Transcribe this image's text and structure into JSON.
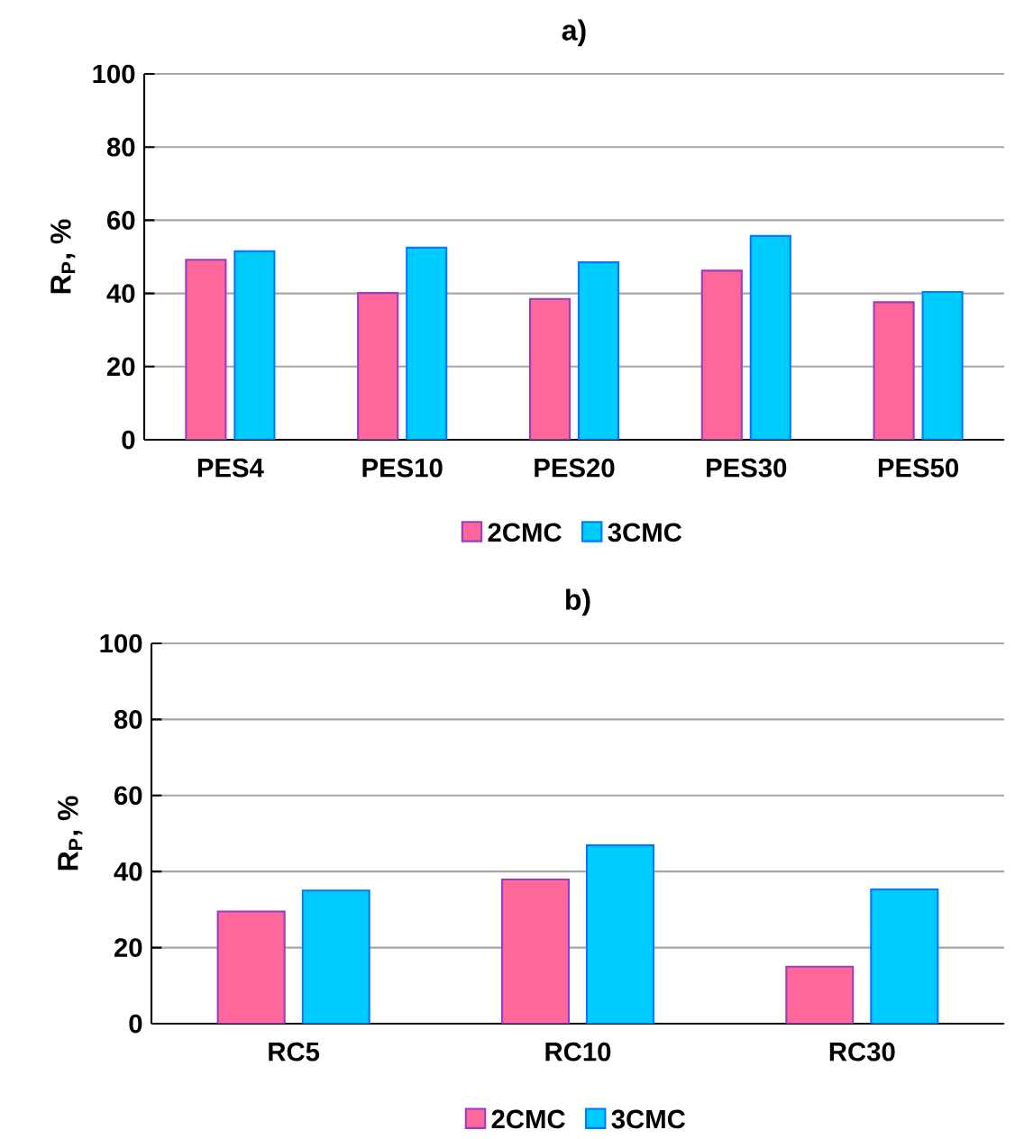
{
  "chart_data": [
    {
      "type": "bar",
      "title": "a)",
      "ylabel": "R$_{P}$, %",
      "categories": [
        "PES4",
        "PES10",
        "PES20",
        "PES30",
        "PES50"
      ],
      "series": [
        {
          "name": "2CMC",
          "color": "#ff6699",
          "values": [
            49.2,
            40.1,
            38.5,
            46.2,
            37.6
          ]
        },
        {
          "name": "3CMC",
          "color": "#00ccff",
          "values": [
            51.5,
            52.5,
            48.5,
            55.7,
            40.4
          ]
        }
      ],
      "ylim": [
        0,
        100
      ],
      "yticks": [
        0,
        20,
        40,
        60,
        80,
        100
      ],
      "grid": "y",
      "legend": "bottom"
    },
    {
      "type": "bar",
      "title": "b)",
      "ylabel": "R$_{P}$, %",
      "categories": [
        "RC5",
        "RC10",
        "RC30"
      ],
      "series": [
        {
          "name": "2CMC",
          "color": "#ff6699",
          "values": [
            29.5,
            37.9,
            15.0
          ]
        },
        {
          "name": "3CMC",
          "color": "#00ccff",
          "values": [
            35.0,
            46.9,
            35.3
          ]
        }
      ],
      "ylim": [
        0,
        100
      ],
      "yticks": [
        0,
        20,
        40,
        60,
        80,
        100
      ],
      "grid": "y",
      "legend": "bottom"
    }
  ]
}
